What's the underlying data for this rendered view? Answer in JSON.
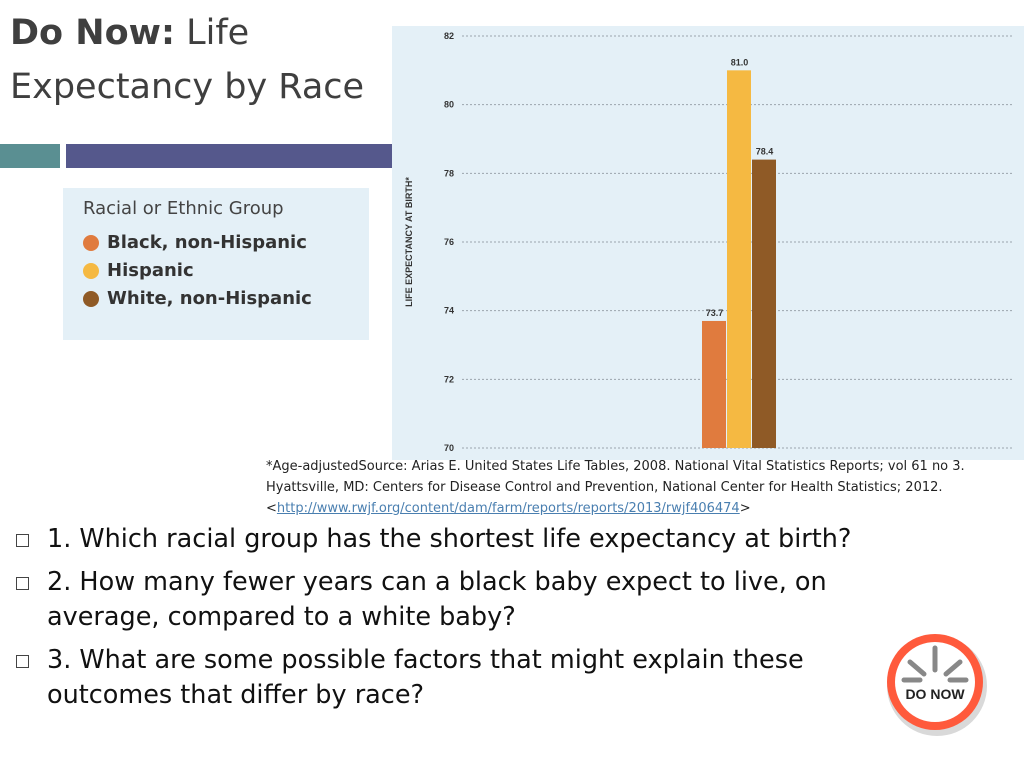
{
  "title": {
    "bold": "Do Now:",
    "rest": "Life Expectancy by Race"
  },
  "legend": {
    "title": "Racial or Ethnic Group",
    "items": [
      {
        "label": "Black, non-Hispanic",
        "color": "#e07b3e"
      },
      {
        "label": "Hispanic",
        "color": "#f5b942"
      },
      {
        "label": "White, non-Hispanic",
        "color": "#8f5a26"
      }
    ]
  },
  "chart_data": {
    "type": "bar",
    "categories": [
      "Black, non-Hispanic",
      "Hispanic",
      "White, non-Hispanic"
    ],
    "values": [
      73.7,
      81.0,
      78.4
    ],
    "value_labels": [
      "73.7",
      "81.0",
      "78.4"
    ],
    "colors": [
      "#e07b3e",
      "#f5b942",
      "#8f5a26"
    ],
    "ylabel": "LIFE EXPECTANCY AT BIRTH*",
    "ylim": [
      70,
      82
    ],
    "yticks": [
      70,
      72,
      74,
      76,
      78,
      80,
      82
    ],
    "grid": true
  },
  "source": {
    "text": "*Age-adjustedSource: Arias E. United States Life Tables, 2008. National Vital Statistics Reports; vol 61 no 3. Hyattsville, MD: Centers for Disease Control and Prevention, National Center for Health Statistics; 2012.",
    "link_open": "<",
    "link": "http://www.rwjf.org/content/dam/farm/reports/reports/2013/rwjf406474",
    "link_close": ">"
  },
  "questions": [
    "1.  Which racial group has the shortest life expectancy at birth?",
    "2.  How many fewer years can a black baby expect to live, on average, compared to a white baby?",
    "3. What are some possible factors that might explain these outcomes that differ by race?"
  ],
  "donow": {
    "label": "DO NOW"
  }
}
